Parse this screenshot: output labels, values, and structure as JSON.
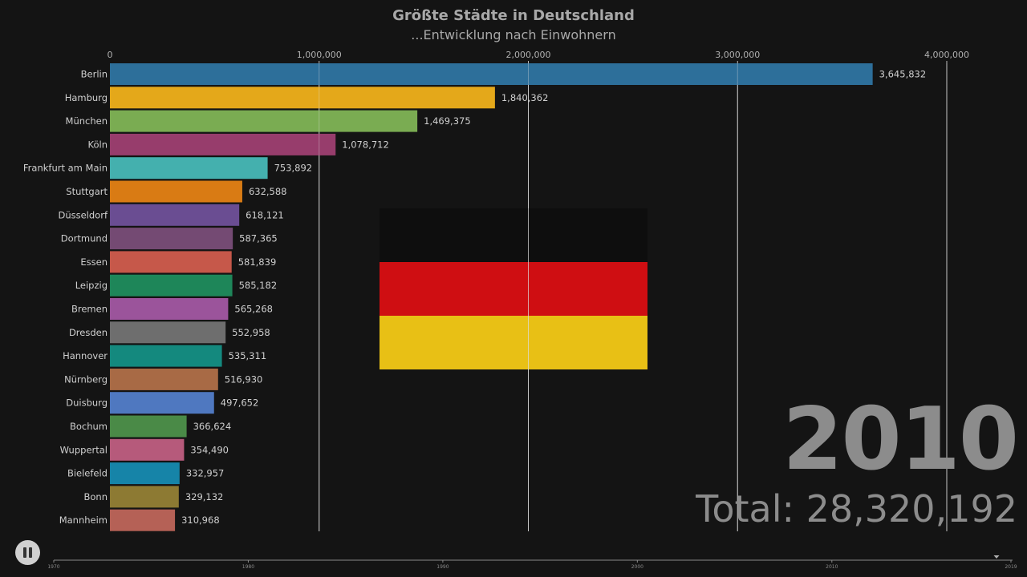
{
  "header": {
    "title": "Größte Städte in Deutschland",
    "subtitle": "...Entwicklung nach Einwohnern"
  },
  "year_display": "2010",
  "total_display": "Total: 28,320,192",
  "controls": {
    "pause_icon": "pause-icon"
  },
  "timeline": {
    "ticks": [
      "1970",
      "1980",
      "1990",
      "2000",
      "2010",
      "2019"
    ],
    "current_marker_icon": "triangle-down-icon"
  },
  "flag": {
    "name": "germany-flag",
    "colors": [
      "#0e0e0e",
      "#cf0e12",
      "#e8c015"
    ]
  },
  "chart_data": {
    "type": "bar",
    "orientation": "horizontal",
    "title": "Größte Städte in Deutschland",
    "subtitle": "...Entwicklung nach Einwohnern",
    "xlim": [
      0,
      4150000
    ],
    "x_ticks": [
      0,
      1000000,
      2000000,
      3000000,
      4000000
    ],
    "x_tick_labels": [
      "0",
      "1,000,000",
      "2,000,000",
      "3,000,000",
      "4,000,000"
    ],
    "grid": true,
    "bars": [
      {
        "label": "Berlin",
        "value": 3645832,
        "value_label": "3,645,832",
        "color": "#2d6f9a"
      },
      {
        "label": "Hamburg",
        "value": 1840362,
        "value_label": "1,840,362",
        "color": "#e4a81a"
      },
      {
        "label": "München",
        "value": 1469375,
        "value_label": "1,469,375",
        "color": "#7aac52"
      },
      {
        "label": "Köln",
        "value": 1078712,
        "value_label": "1,078,712",
        "color": "#973d6c"
      },
      {
        "label": "Frankfurt am Main",
        "value": 753892,
        "value_label": "753,892",
        "color": "#44b0ae"
      },
      {
        "label": "Stuttgart",
        "value": 632588,
        "value_label": "632,588",
        "color": "#d97b14"
      },
      {
        "label": "Düsseldorf",
        "value": 618121,
        "value_label": "618,121",
        "color": "#6a4d92"
      },
      {
        "label": "Dortmund",
        "value": 587365,
        "value_label": "587,365",
        "color": "#744a73"
      },
      {
        "label": "Essen",
        "value": 581839,
        "value_label": "581,839",
        "color": "#c6584a"
      },
      {
        "label": "Leipzig",
        "value": 585182,
        "value_label": "585,182",
        "color": "#1e8659"
      },
      {
        "label": "Bremen",
        "value": 565268,
        "value_label": "565,268",
        "color": "#9b549b"
      },
      {
        "label": "Dresden",
        "value": 552958,
        "value_label": "552,958",
        "color": "#6e6e6e"
      },
      {
        "label": "Hannover",
        "value": 535311,
        "value_label": "535,311",
        "color": "#14897e"
      },
      {
        "label": "Nürnberg",
        "value": 516930,
        "value_label": "516,930",
        "color": "#a86a45"
      },
      {
        "label": "Duisburg",
        "value": 497652,
        "value_label": "497,652",
        "color": "#4f78c0"
      },
      {
        "label": "Bochum",
        "value": 366624,
        "value_label": "366,624",
        "color": "#4a8a47"
      },
      {
        "label": "Wuppertal",
        "value": 354490,
        "value_label": "354,490",
        "color": "#b65a7b"
      },
      {
        "label": "Bielefeld",
        "value": 332957,
        "value_label": "332,957",
        "color": "#1684a8"
      },
      {
        "label": "Bonn",
        "value": 329132,
        "value_label": "329,132",
        "color": "#8d7a33"
      },
      {
        "label": "Mannheim",
        "value": 310968,
        "value_label": "310,968",
        "color": "#b56156"
      }
    ]
  }
}
